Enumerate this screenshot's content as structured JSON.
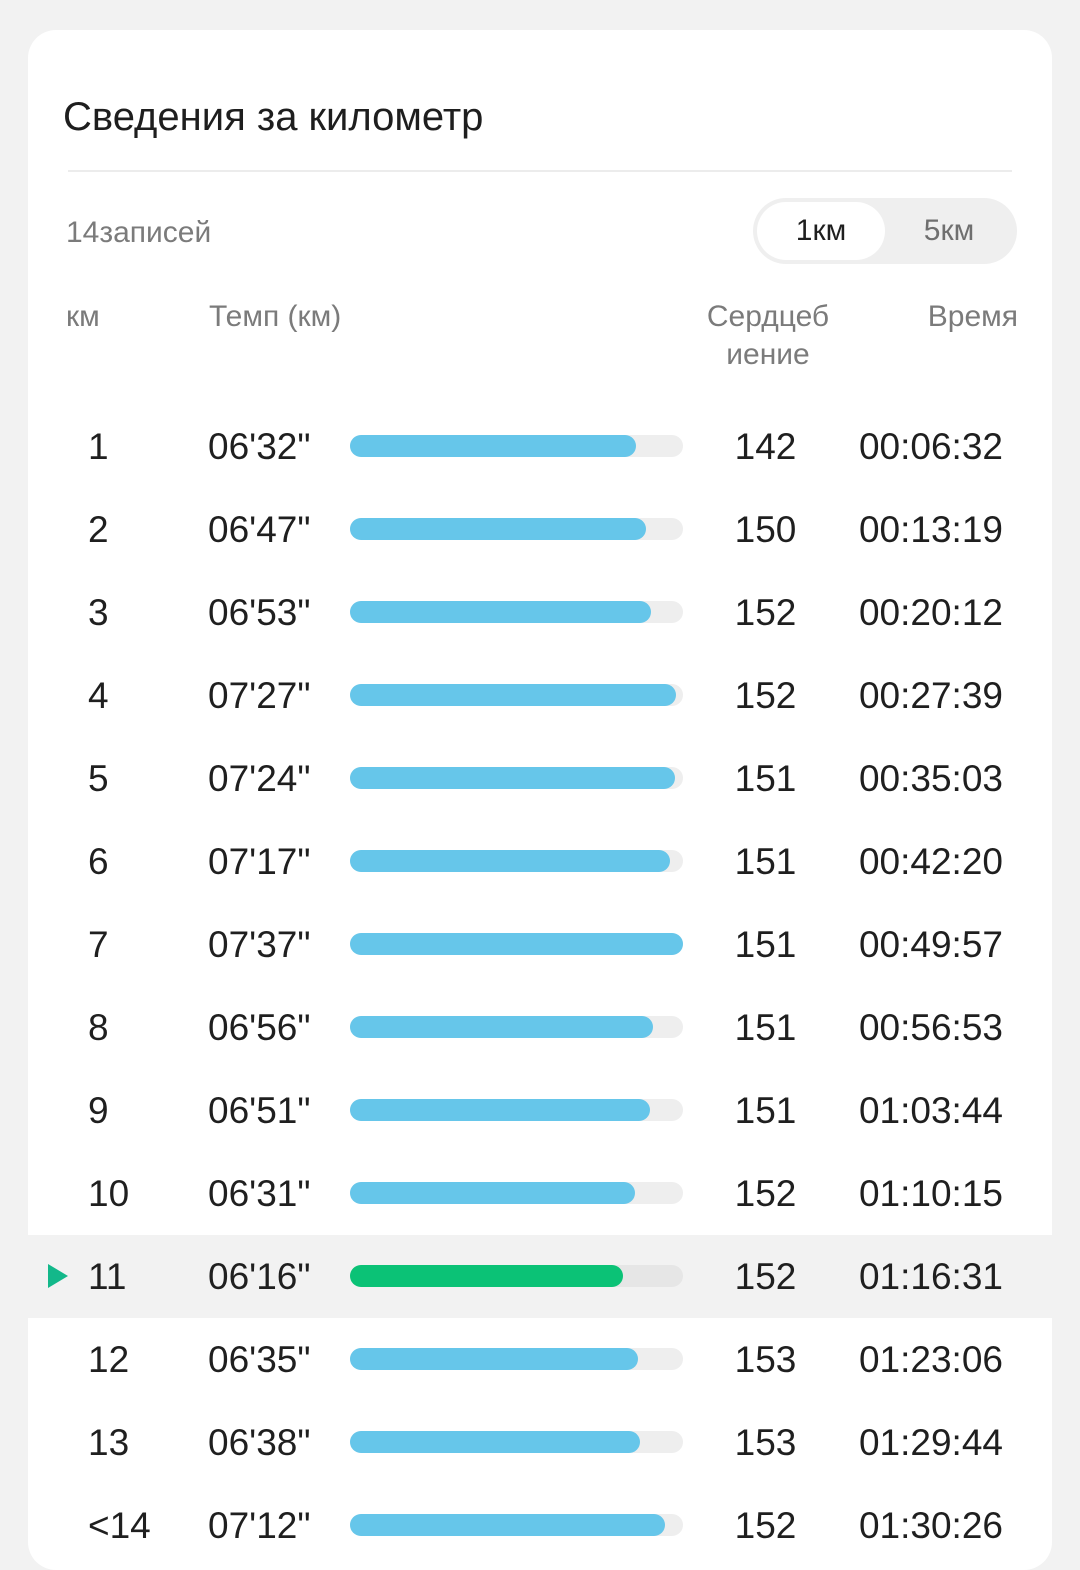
{
  "card": {
    "title": "Сведения за километр",
    "records_count": "14записей",
    "toggle": {
      "options": [
        "1км",
        "5км"
      ],
      "selected_index": 0
    }
  },
  "columns": {
    "km": "км",
    "pace": "Темп (км)",
    "heart_rate": "Сердцеб иение",
    "time": "Время"
  },
  "colors": {
    "bar": "#66c6ea",
    "bar_highlight": "#0bc276",
    "marker": "#13b88a"
  },
  "rows": [
    {
      "km": "1",
      "pace": "06'32\"",
      "pace_fraction": 0.86,
      "hr": "142",
      "time": "00:06:32"
    },
    {
      "km": "2",
      "pace": "06'47\"",
      "pace_fraction": 0.89,
      "hr": "150",
      "time": "00:13:19"
    },
    {
      "km": "3",
      "pace": "06'53\"",
      "pace_fraction": 0.905,
      "hr": "152",
      "time": "00:20:12"
    },
    {
      "km": "4",
      "pace": "07'27\"",
      "pace_fraction": 0.98,
      "hr": "152",
      "time": "00:27:39"
    },
    {
      "km": "5",
      "pace": "07'24\"",
      "pace_fraction": 0.975,
      "hr": "151",
      "time": "00:35:03"
    },
    {
      "km": "6",
      "pace": "07'17\"",
      "pace_fraction": 0.96,
      "hr": "151",
      "time": "00:42:20"
    },
    {
      "km": "7",
      "pace": "07'37\"",
      "pace_fraction": 1.0,
      "hr": "151",
      "time": "00:49:57"
    },
    {
      "km": "8",
      "pace": "06'56\"",
      "pace_fraction": 0.91,
      "hr": "151",
      "time": "00:56:53"
    },
    {
      "km": "9",
      "pace": "06'51\"",
      "pace_fraction": 0.9,
      "hr": "151",
      "time": "01:03:44"
    },
    {
      "km": "10",
      "pace": "06'31\"",
      "pace_fraction": 0.855,
      "hr": "152",
      "time": "01:10:15"
    },
    {
      "km": "11",
      "pace": "06'16\"",
      "pace_fraction": 0.82,
      "hr": "152",
      "time": "01:16:31",
      "highlight": true
    },
    {
      "km": "12",
      "pace": "06'35\"",
      "pace_fraction": 0.865,
      "hr": "153",
      "time": "01:23:06"
    },
    {
      "km": "13",
      "pace": "06'38\"",
      "pace_fraction": 0.87,
      "hr": "153",
      "time": "01:29:44"
    },
    {
      "km": "<14",
      "pace": "07'12\"",
      "pace_fraction": 0.945,
      "hr": "152",
      "time": "01:30:26"
    }
  ]
}
